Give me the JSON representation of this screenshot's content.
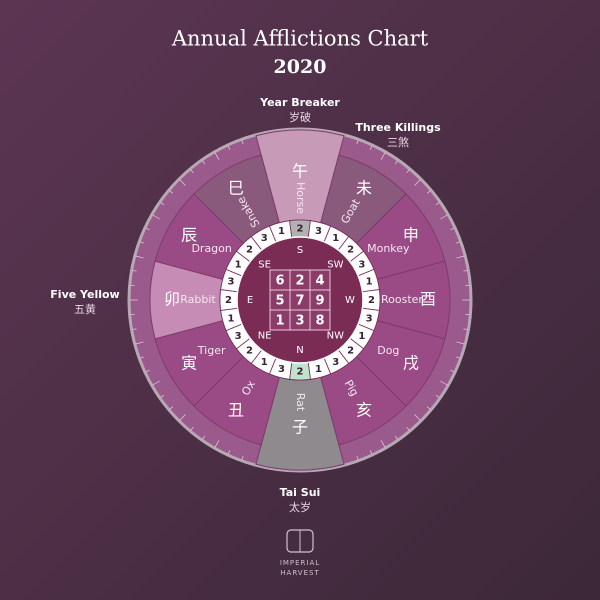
{
  "title": "Annual Afflictions Chart",
  "year": "2020",
  "afflictions": [
    {
      "label": "Year Breaker",
      "chinese": "岁破"
    },
    {
      "label": "Three Killings",
      "chinese": "三煞"
    },
    {
      "label": "Five Yellow",
      "chinese": "五黄"
    },
    {
      "label": "Tai Sui",
      "chinese": "太岁"
    }
  ],
  "animals": [
    {
      "name": "Horse",
      "chinese": "午"
    },
    {
      "name": "Goat",
      "chinese": "未"
    },
    {
      "name": "Monkey",
      "chinese": "申"
    },
    {
      "name": "Rooster",
      "chinese": "酉"
    },
    {
      "name": "Dog",
      "chinese": "戌"
    },
    {
      "name": "Pig",
      "chinese": "亥"
    },
    {
      "name": "Rat",
      "chinese": "子"
    },
    {
      "name": "Ox",
      "chinese": "丑"
    },
    {
      "name": "Tiger",
      "chinese": "寅"
    },
    {
      "name": "Rabbit",
      "chinese": "卯"
    },
    {
      "name": "Dragon",
      "chinese": "辰"
    },
    {
      "name": "Snake",
      "chinese": "巳"
    }
  ],
  "directions": [
    "S",
    "SW",
    "W",
    "NW",
    "N",
    "NE",
    "E",
    "SE"
  ],
  "mountains": [
    1,
    2,
    3,
    1,
    2,
    3,
    1,
    2,
    3,
    1,
    2,
    3,
    1,
    2,
    3,
    1,
    2,
    3,
    1,
    2,
    3,
    1,
    2,
    3
  ],
  "grid": [
    [
      6,
      2,
      4
    ],
    [
      5,
      7,
      9
    ],
    [
      1,
      3,
      8
    ]
  ],
  "logo": {
    "line1": "IMPERIAL",
    "line2": "HARVEST"
  }
}
